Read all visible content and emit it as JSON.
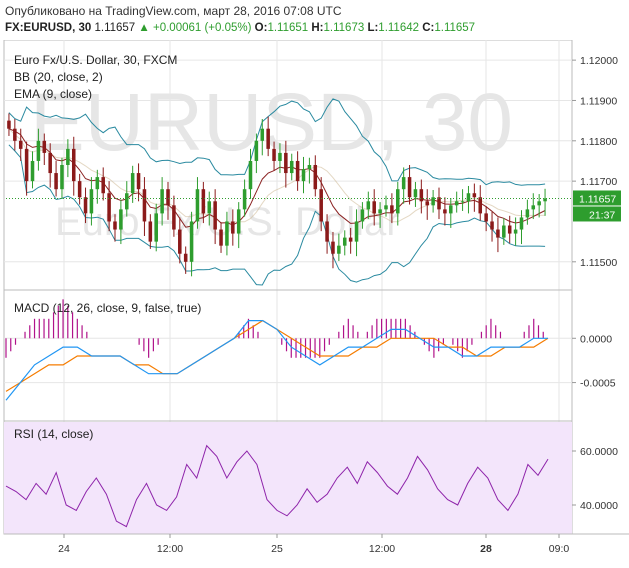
{
  "header": {
    "published": "Опубликовано на TradingView.com, март 28, 2016 07:08 UTC",
    "symbol": "FX:EURUSD, 30",
    "last": "1.11657",
    "change": "+0.00061 (+0.05%)",
    "o_label": "O:",
    "o": "1.11651",
    "h_label": "H:",
    "h": "1.11673",
    "l_label": "L:",
    "l": "1.11642",
    "c_label": "C:",
    "c": "1.11657"
  },
  "colors": {
    "up": "#2e9d2e",
    "down": "#8b1a1a",
    "bb": "#2a8aa0",
    "ema": "#8b2222",
    "macd": "#2196f3",
    "signal": "#f57c00",
    "hist": "#b0128a",
    "rsi": "#8e24aa",
    "rsi_bg": "#f3e5fb",
    "grid": "#e6e6e6"
  },
  "chart_data": [
    {
      "type": "candlestick",
      "title": "Euro Fx/U.S. Dollar, 30, FXCM",
      "indicators": [
        "BB (20, close, 2)",
        "EMA (9, close)"
      ],
      "watermark": "EURUSD, 30",
      "watermark_sub": "Euro Fx/U.S. Dollar",
      "ylim": [
        1.1144,
        1.1204
      ],
      "y_ticks": [
        "1.12000",
        "1.11900",
        "1.11800",
        "1.11700",
        "1.11500"
      ],
      "price_label": "1.11657",
      "countdown_label": "21:37",
      "x_ticks": [
        "24",
        "12:00",
        "25",
        "12:00",
        "28",
        "09:0"
      ],
      "close": [
        1.1183,
        1.118,
        1.1178,
        1.117,
        1.1175,
        1.118,
        1.1177,
        1.1172,
        1.1168,
        1.1174,
        1.1178,
        1.117,
        1.1166,
        1.1162,
        1.1168,
        1.1171,
        1.1167,
        1.116,
        1.1158,
        1.1163,
        1.1167,
        1.1172,
        1.1168,
        1.116,
        1.1155,
        1.1162,
        1.1168,
        1.1164,
        1.1158,
        1.1152,
        1.115,
        1.116,
        1.1168,
        1.1162,
        1.1165,
        1.1158,
        1.1154,
        1.116,
        1.1157,
        1.1163,
        1.1168,
        1.1175,
        1.118,
        1.1183,
        1.1178,
        1.1175,
        1.1177,
        1.1172,
        1.1175,
        1.117,
        1.1173,
        1.1174,
        1.1168,
        1.116,
        1.1155,
        1.1152,
        1.1154,
        1.1156,
        1.1155,
        1.116,
        1.1163,
        1.1165,
        1.1162,
        1.1163,
        1.1164,
        1.1162,
        1.1168,
        1.1171,
        1.1166,
        1.1168,
        1.1165,
        1.1164,
        1.1166,
        1.1163,
        1.1162,
        1.1164,
        1.1165,
        1.1165,
        1.1167,
        1.1166,
        1.1162,
        1.116,
        1.1158,
        1.1156,
        1.1159,
        1.1157,
        1.1158,
        1.1161,
        1.1163,
        1.1164,
        1.1165,
        1.11657
      ]
    },
    {
      "type": "macd",
      "title": "MACD (12, 26, close, 9, false, true)",
      "ylim": [
        -0.0009,
        0.0005
      ],
      "y_ticks": [
        "0.0000",
        "-0.0005"
      ],
      "macd": [
        -0.0007,
        -0.0005,
        -0.0003,
        -0.0002,
        -0.0001,
        -0.0001,
        -0.0002,
        -0.0002,
        -0.0002,
        -0.0003,
        -0.0004,
        -0.0004,
        -0.0004,
        -0.0003,
        -0.0002,
        -0.0001,
        0.0,
        0.0002,
        0.0002,
        0.0001,
        -0.0001,
        -0.0002,
        -0.0003,
        -0.0002,
        -0.0001,
        -0.0001,
        0.0,
        0.0001,
        0.0001,
        0.0,
        -0.0001,
        -0.0001,
        -0.0002,
        -0.0002,
        -0.0001,
        -0.0001,
        -0.0001,
        0.0,
        0.0
      ],
      "signal": [
        -0.0006,
        -0.0005,
        -0.0004,
        -0.0003,
        -0.0003,
        -0.0002,
        -0.0002,
        -0.0002,
        -0.0002,
        -0.0003,
        -0.0003,
        -0.0004,
        -0.0004,
        -0.0003,
        -0.0002,
        -0.0001,
        0.0,
        0.0001,
        0.0002,
        0.0001,
        0.0,
        -0.0001,
        -0.0002,
        -0.0002,
        -0.0002,
        -0.0001,
        -0.0001,
        0.0,
        0.0,
        0.0,
        0.0,
        -0.0001,
        -0.0001,
        -0.0002,
        -0.0002,
        -0.0001,
        -0.0001,
        -0.0001,
        0.0
      ]
    },
    {
      "type": "rsi",
      "title": "RSI (14, close)",
      "ylim": [
        30,
        70
      ],
      "y_ticks": [
        "60.0000",
        "40.0000"
      ],
      "values": [
        47,
        45,
        42,
        48,
        44,
        52,
        40,
        38,
        45,
        50,
        44,
        34,
        32,
        42,
        48,
        40,
        38,
        43,
        55,
        50,
        62,
        58,
        50,
        56,
        60,
        55,
        42,
        38,
        36,
        40,
        46,
        41,
        44,
        50,
        54,
        48,
        56,
        52,
        47,
        44,
        50,
        58,
        53,
        46,
        42,
        40,
        48,
        54,
        50,
        42,
        38,
        44,
        55,
        51,
        57
      ]
    }
  ]
}
